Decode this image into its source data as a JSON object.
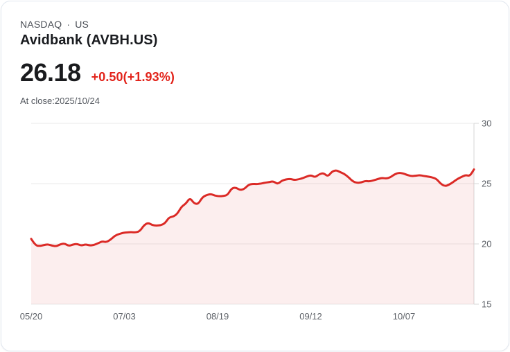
{
  "header": {
    "exchange": "NASDAQ",
    "separator": "·",
    "region": "US",
    "title": "Avidbank (AVBH.US)",
    "price": "26.18",
    "change": "+0.50(+1.93%)",
    "as_of": "At close:2025/10/24"
  },
  "colors": {
    "line": "#db2a26",
    "area_fill": "rgba(219,42,38,0.08)",
    "change_text": "#e2231a",
    "grid_line": "#e9e9e9",
    "axis_line": "#d7d7d7",
    "tick_text": "#5d6167"
  },
  "chart_data": {
    "type": "area",
    "title": "",
    "xlabel": "",
    "ylabel": "",
    "x_tick_labels": [
      "05/20",
      "07/03",
      "08/19",
      "09/12",
      "10/07"
    ],
    "y_tick_values": [
      30,
      25,
      20,
      15
    ],
    "ylim": [
      15,
      30
    ],
    "grid": true,
    "legend": false,
    "series_note": "daily close prices from 05/20 to 10/24, last value 26.18",
    "values": [
      20.42,
      19.88,
      19.82,
      19.9,
      19.97,
      19.85,
      19.8,
      19.97,
      20.04,
      19.82,
      19.95,
      20.0,
      19.85,
      19.97,
      19.87,
      19.9,
      20.05,
      20.22,
      20.14,
      20.35,
      20.67,
      20.82,
      20.92,
      20.96,
      20.98,
      20.95,
      21.05,
      21.55,
      21.76,
      21.55,
      21.52,
      21.55,
      21.7,
      22.2,
      22.26,
      22.5,
      23.1,
      23.32,
      23.83,
      23.35,
      23.3,
      23.88,
      24.05,
      24.15,
      24.0,
      23.95,
      23.97,
      24.05,
      24.62,
      24.68,
      24.46,
      24.55,
      24.9,
      24.98,
      24.96,
      25.0,
      25.08,
      25.13,
      25.2,
      24.95,
      25.25,
      25.35,
      25.4,
      25.3,
      25.35,
      25.45,
      25.6,
      25.7,
      25.52,
      25.8,
      25.88,
      25.58,
      26.0,
      26.12,
      25.95,
      25.8,
      25.52,
      25.18,
      25.06,
      25.1,
      25.22,
      25.18,
      25.28,
      25.38,
      25.48,
      25.42,
      25.52,
      25.78,
      25.9,
      25.86,
      25.72,
      25.62,
      25.66,
      25.7,
      25.64,
      25.58,
      25.52,
      25.4,
      25.0,
      24.78,
      24.9,
      25.12,
      25.38,
      25.55,
      25.72,
      25.62,
      26.18
    ]
  }
}
